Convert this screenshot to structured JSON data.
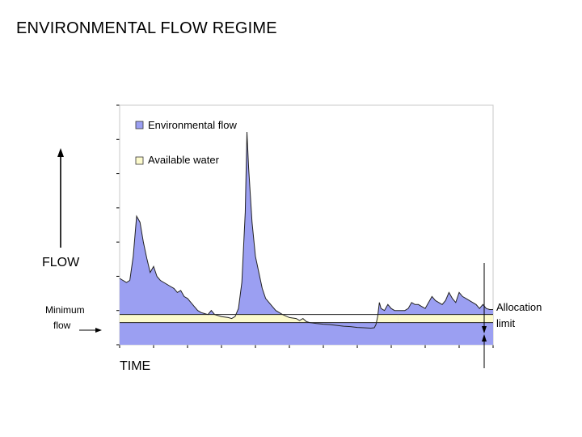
{
  "slide": {
    "title": "ENVIRONMENTAL FLOW REGIME"
  },
  "colors": {
    "environmental": "#9b9ff2",
    "available": "#fdfbcd",
    "line": "#222222",
    "plot_border": "#c8c8c8"
  },
  "chart_data": {
    "type": "area",
    "xlabel": "TIME",
    "ylabel": "FLOW",
    "grid": false,
    "legend_position": "top-left",
    "legend": [
      {
        "name": "Environmental flow",
        "color_key": "environmental"
      },
      {
        "name": "Available water",
        "color_key": "available"
      }
    ],
    "annotations": {
      "minimum_flow": "Minimum\nflow",
      "allocation_limit": "Allocation\nlimit"
    },
    "xlim": [
      0,
      110
    ],
    "ylim": [
      0,
      100
    ],
    "minimum_flow_level": 5,
    "allocation_limit_level": 9,
    "allocation_segments": [
      [
        0,
        82
      ],
      [
        82,
        110
      ]
    ],
    "hydrograph": [
      [
        0,
        27
      ],
      [
        2,
        25
      ],
      [
        3,
        26
      ],
      [
        4,
        38
      ],
      [
        5,
        58
      ],
      [
        6,
        55
      ],
      [
        7,
        45
      ],
      [
        8,
        37
      ],
      [
        9,
        30
      ],
      [
        10,
        33
      ],
      [
        11,
        28
      ],
      [
        12,
        26
      ],
      [
        13,
        25
      ],
      [
        14,
        24
      ],
      [
        15,
        23
      ],
      [
        16,
        22
      ],
      [
        17,
        20
      ],
      [
        18,
        21
      ],
      [
        19,
        18
      ],
      [
        20,
        17
      ],
      [
        21,
        15
      ],
      [
        22,
        13
      ],
      [
        23,
        11
      ],
      [
        24,
        10
      ],
      [
        26,
        9
      ],
      [
        27,
        11
      ],
      [
        28,
        9
      ],
      [
        30,
        8
      ],
      [
        32,
        7.5
      ],
      [
        33,
        7
      ],
      [
        34,
        8
      ],
      [
        35,
        12
      ],
      [
        36,
        25
      ],
      [
        37,
        60
      ],
      [
        37.5,
        100
      ],
      [
        38,
        82
      ],
      [
        39,
        55
      ],
      [
        40,
        38
      ],
      [
        41,
        30
      ],
      [
        42,
        22
      ],
      [
        43,
        17
      ],
      [
        44,
        15
      ],
      [
        45,
        13
      ],
      [
        46,
        11
      ],
      [
        47,
        10
      ],
      [
        48,
        9
      ],
      [
        50,
        7.5
      ],
      [
        52,
        7
      ],
      [
        53,
        6
      ],
      [
        54,
        7
      ],
      [
        55,
        5.5
      ],
      [
        56,
        5
      ],
      [
        58,
        4.5
      ],
      [
        60,
        4.2
      ],
      [
        62,
        4
      ],
      [
        64,
        3.6
      ],
      [
        66,
        3.2
      ],
      [
        68,
        3
      ],
      [
        70,
        2.6
      ],
      [
        72,
        2.4
      ],
      [
        74,
        2.2
      ],
      [
        75,
        2.4
      ],
      [
        75.5,
        4
      ],
      [
        76,
        8
      ],
      [
        76.5,
        15
      ],
      [
        77,
        12
      ],
      [
        78,
        11
      ],
      [
        79,
        14
      ],
      [
        80,
        12
      ],
      [
        81,
        11
      ],
      [
        82,
        11
      ],
      [
        84,
        11
      ],
      [
        85,
        12
      ],
      [
        86,
        15
      ],
      [
        87,
        14
      ],
      [
        88,
        14
      ],
      [
        89,
        13
      ],
      [
        90,
        12
      ],
      [
        91,
        15
      ],
      [
        92,
        18
      ],
      [
        93,
        16
      ],
      [
        94,
        15
      ],
      [
        95,
        14
      ],
      [
        96,
        16
      ],
      [
        97,
        20
      ],
      [
        98,
        17
      ],
      [
        99,
        15
      ],
      [
        100,
        20
      ],
      [
        101,
        18
      ],
      [
        102,
        17
      ],
      [
        103,
        16
      ],
      [
        104,
        15
      ],
      [
        105,
        14
      ],
      [
        106,
        12
      ],
      [
        107,
        14
      ],
      [
        108,
        12
      ],
      [
        109,
        11.5
      ],
      [
        110,
        11.5
      ]
    ]
  }
}
